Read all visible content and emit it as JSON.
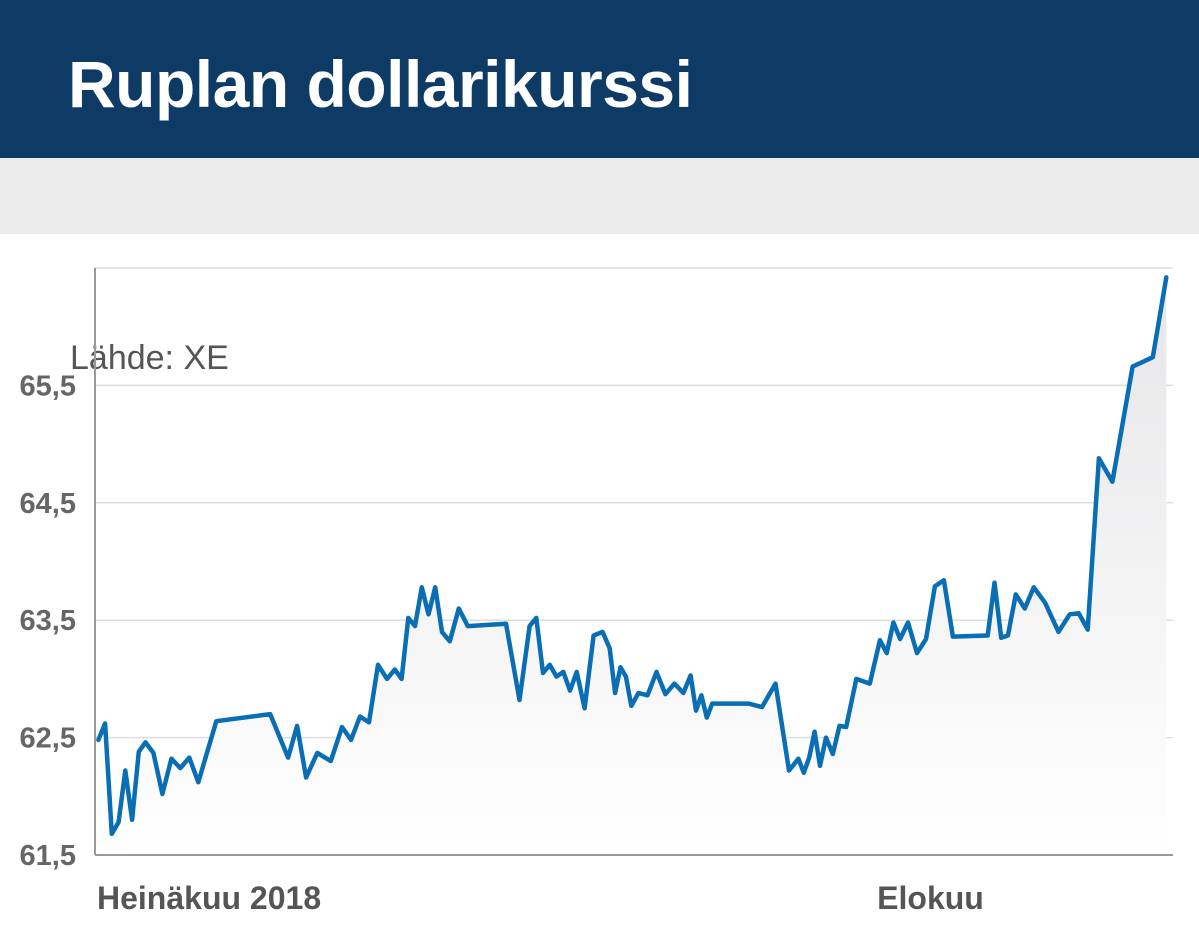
{
  "header": {
    "title": "Ruplan dollarikurssi",
    "source": "Lähde: XE"
  },
  "chart_data": {
    "type": "line",
    "title": "Ruplan dollarikurssi",
    "source": "Lähde: XE",
    "xlabel": "",
    "ylabel": "",
    "ylim": [
      61.5,
      66.5
    ],
    "yticks": [
      61.5,
      62.5,
      63.5,
      64.5,
      65.5
    ],
    "ytick_labels": [
      "61,5",
      "62,5",
      "63,5",
      "64,5",
      "65,5"
    ],
    "xlim": [
      "2018-07-01",
      "2018-08-10"
    ],
    "xtick_labels": [
      {
        "date": "2018-07-01",
        "label": "Heinäkuu 2018",
        "align": "start"
      },
      {
        "date": "2018-08-01",
        "label": "Elokuu",
        "align": "middle"
      }
    ],
    "grid": "horizontal",
    "colors": {
      "line": "#0a6eb5",
      "area_top": "#e8e8ea",
      "grid": "#dddddd",
      "axis": "#999999"
    },
    "series": [
      {
        "name": "",
        "points": [
          [
            "2018-07-01",
            62.48
          ],
          [
            "2018-07-01",
            62.62
          ],
          [
            "2018-07-01",
            61.68
          ],
          [
            "2018-07-01",
            61.78
          ],
          [
            "2018-07-02",
            62.22
          ],
          [
            "2018-07-02",
            61.8
          ],
          [
            "2018-07-02",
            62.38
          ],
          [
            "2018-07-02",
            62.46
          ],
          [
            "2018-07-03",
            62.37
          ],
          [
            "2018-07-03",
            62.02
          ],
          [
            "2018-07-03",
            62.32
          ],
          [
            "2018-07-04",
            62.24
          ],
          [
            "2018-07-04",
            62.33
          ],
          [
            "2018-07-04",
            62.12
          ],
          [
            "2018-07-05",
            62.64
          ],
          [
            "2018-07-07",
            62.7
          ],
          [
            "2018-07-08",
            62.33
          ],
          [
            "2018-07-08",
            62.6
          ],
          [
            "2018-07-08",
            62.16
          ],
          [
            "2018-07-09",
            62.37
          ],
          [
            "2018-07-09",
            62.3
          ],
          [
            "2018-07-10",
            62.59
          ],
          [
            "2018-07-10",
            62.48
          ],
          [
            "2018-07-10",
            62.68
          ],
          [
            "2018-07-11",
            62.63
          ],
          [
            "2018-07-11",
            63.12
          ],
          [
            "2018-07-11",
            63.0
          ],
          [
            "2018-07-12",
            63.08
          ],
          [
            "2018-07-12",
            63.0
          ],
          [
            "2018-07-12",
            63.52
          ],
          [
            "2018-07-12",
            63.45
          ],
          [
            "2018-07-13",
            63.78
          ],
          [
            "2018-07-13",
            63.55
          ],
          [
            "2018-07-13",
            63.78
          ],
          [
            "2018-07-13",
            63.4
          ],
          [
            "2018-07-14",
            63.32
          ],
          [
            "2018-07-14",
            63.6
          ],
          [
            "2018-07-14",
            63.45
          ],
          [
            "2018-07-16",
            63.47
          ],
          [
            "2018-07-16",
            62.82
          ],
          [
            "2018-07-17",
            63.45
          ],
          [
            "2018-07-17",
            63.52
          ],
          [
            "2018-07-17",
            63.05
          ],
          [
            "2018-07-17",
            63.12
          ],
          [
            "2018-07-18",
            63.02
          ],
          [
            "2018-07-18",
            63.06
          ],
          [
            "2018-07-18",
            62.9
          ],
          [
            "2018-07-18",
            63.06
          ],
          [
            "2018-07-19",
            62.75
          ],
          [
            "2018-07-19",
            63.37
          ],
          [
            "2018-07-19",
            63.4
          ],
          [
            "2018-07-20",
            63.26
          ],
          [
            "2018-07-20",
            62.88
          ],
          [
            "2018-07-20",
            63.1
          ],
          [
            "2018-07-20",
            63.02
          ],
          [
            "2018-07-20",
            62.77
          ],
          [
            "2018-07-21",
            62.88
          ],
          [
            "2018-07-21",
            62.86
          ],
          [
            "2018-07-21",
            63.06
          ],
          [
            "2018-07-22",
            62.87
          ],
          [
            "2018-07-22",
            62.96
          ],
          [
            "2018-07-22",
            62.88
          ],
          [
            "2018-07-23",
            63.03
          ],
          [
            "2018-07-23",
            62.73
          ],
          [
            "2018-07-23",
            62.86
          ],
          [
            "2018-07-23",
            62.67
          ],
          [
            "2018-07-23",
            62.79
          ],
          [
            "2018-07-25",
            62.79
          ],
          [
            "2018-07-25",
            62.76
          ],
          [
            "2018-07-26",
            62.96
          ],
          [
            "2018-07-26",
            62.22
          ],
          [
            "2018-07-27",
            62.32
          ],
          [
            "2018-07-27",
            62.2
          ],
          [
            "2018-07-27",
            62.33
          ],
          [
            "2018-07-27",
            62.55
          ],
          [
            "2018-07-27",
            62.26
          ],
          [
            "2018-07-28",
            62.5
          ],
          [
            "2018-07-28",
            62.36
          ],
          [
            "2018-07-28",
            62.6
          ],
          [
            "2018-07-28",
            62.59
          ],
          [
            "2018-07-29",
            63.0
          ],
          [
            "2018-07-29",
            62.96
          ],
          [
            "2018-07-30",
            63.33
          ],
          [
            "2018-07-30",
            63.22
          ],
          [
            "2018-07-30",
            63.48
          ],
          [
            "2018-07-30",
            63.34
          ],
          [
            "2018-07-31",
            63.48
          ],
          [
            "2018-07-31",
            63.22
          ],
          [
            "2018-07-31",
            63.34
          ],
          [
            "2018-08-01",
            63.79
          ],
          [
            "2018-08-01",
            63.84
          ],
          [
            "2018-08-01",
            63.36
          ],
          [
            "2018-08-03",
            63.37
          ],
          [
            "2018-08-03",
            63.82
          ],
          [
            "2018-08-03",
            63.35
          ],
          [
            "2018-08-03",
            63.37
          ],
          [
            "2018-08-04",
            63.72
          ],
          [
            "2018-08-04",
            63.6
          ],
          [
            "2018-08-04",
            63.78
          ],
          [
            "2018-08-05",
            63.65
          ],
          [
            "2018-08-05",
            63.4
          ],
          [
            "2018-08-06",
            63.55
          ],
          [
            "2018-08-06",
            63.56
          ],
          [
            "2018-08-06",
            63.42
          ],
          [
            "2018-08-07",
            64.88
          ],
          [
            "2018-08-07",
            64.68
          ],
          [
            "2018-08-08",
            65.66
          ],
          [
            "2018-08-09",
            65.74
          ],
          [
            "2018-08-09",
            66.42
          ]
        ]
      }
    ]
  }
}
